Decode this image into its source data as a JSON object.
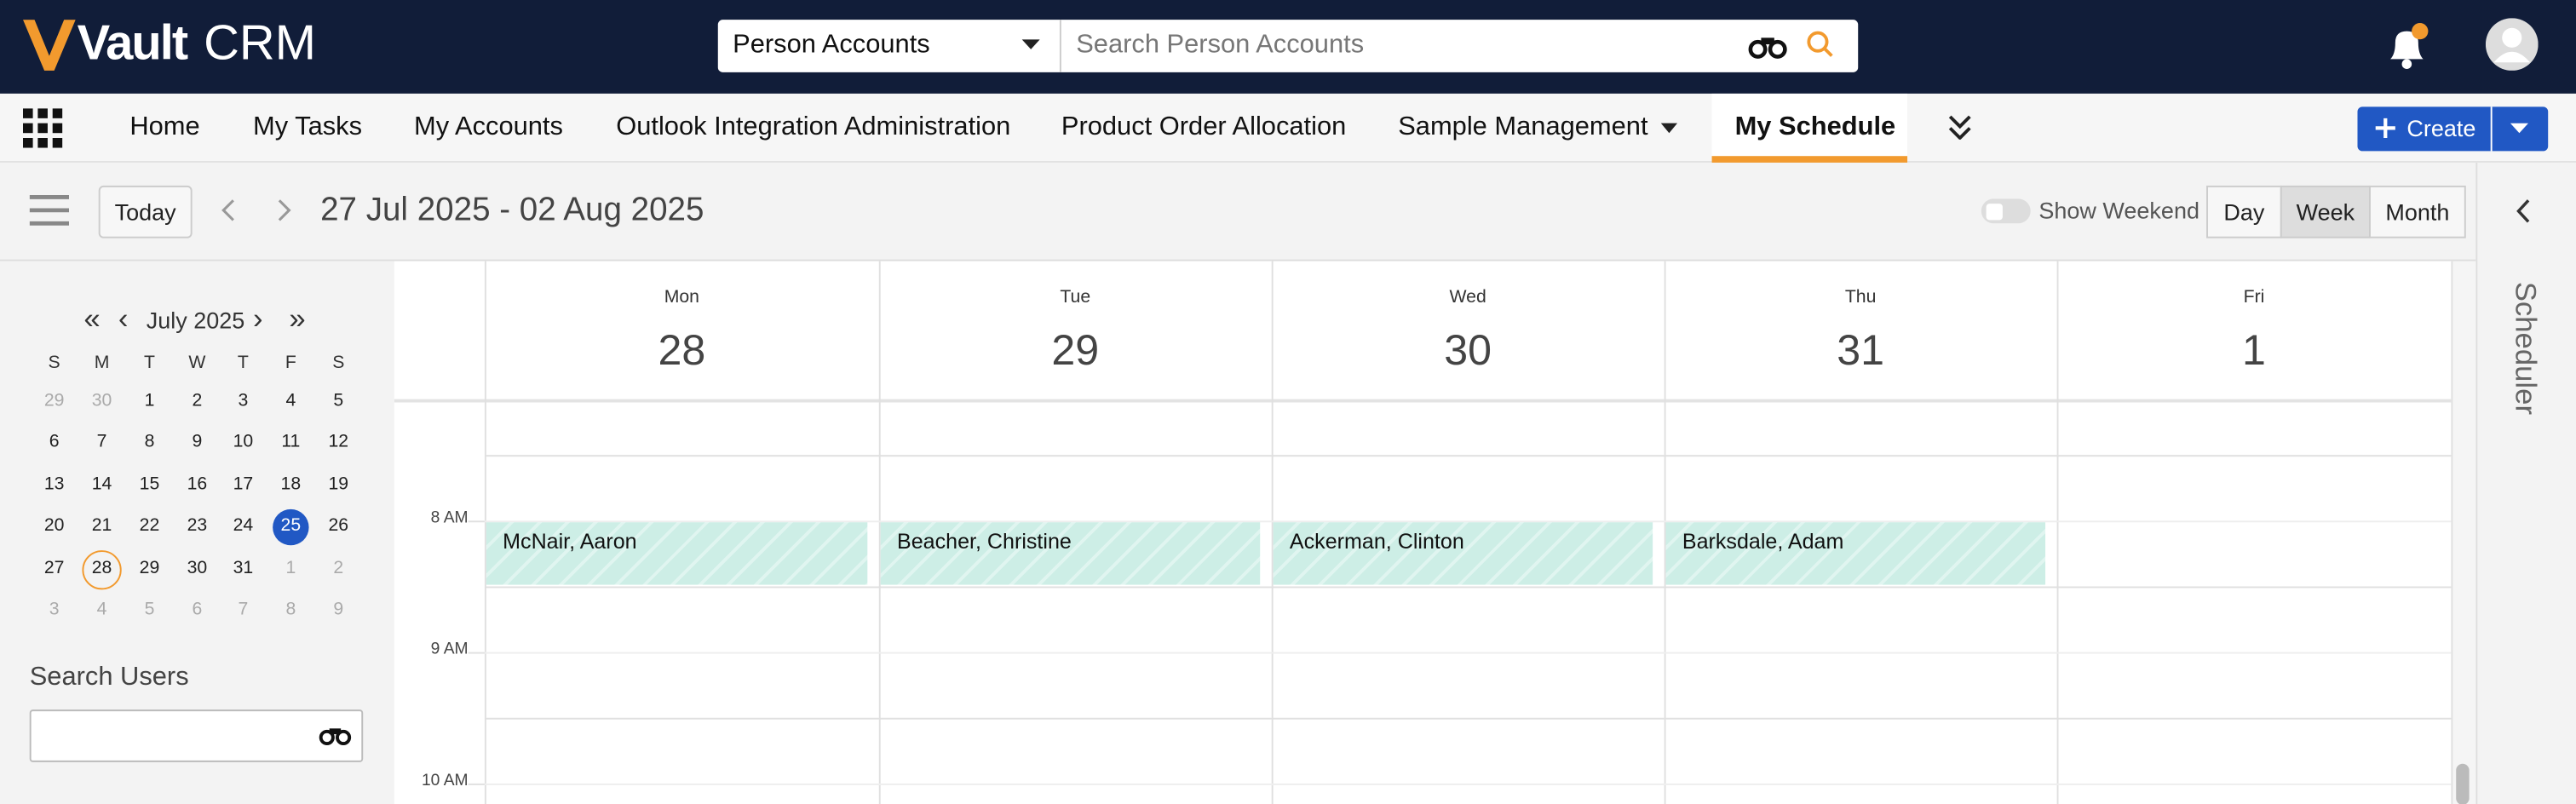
{
  "header": {
    "brand": "Vault",
    "brand_suffix": "CRM",
    "search_scope": "Person Accounts",
    "search_placeholder": "Search Person Accounts"
  },
  "nav": {
    "tabs": [
      "Home",
      "My Tasks",
      "My Accounts",
      "Outlook Integration Administration",
      "Product Order Allocation",
      "Sample Management",
      "My Schedule"
    ],
    "active_tab": "My Schedule",
    "create": "Create"
  },
  "toolbar": {
    "today": "Today",
    "range": "27 Jul 2025 - 02 Aug 2025",
    "show_weekend": "Show Weekend",
    "views": [
      "Day",
      "Week",
      "Month"
    ],
    "active_view": "Week"
  },
  "mini_calendar": {
    "title": "July 2025",
    "weekdays": [
      "S",
      "M",
      "T",
      "W",
      "T",
      "F",
      "S"
    ],
    "weeks": [
      [
        29,
        30,
        1,
        2,
        3,
        4,
        5
      ],
      [
        6,
        7,
        8,
        9,
        10,
        11,
        12
      ],
      [
        13,
        14,
        15,
        16,
        17,
        18,
        19
      ],
      [
        20,
        21,
        22,
        23,
        24,
        25,
        26
      ],
      [
        27,
        28,
        29,
        30,
        31,
        1,
        2
      ],
      [
        3,
        4,
        5,
        6,
        7,
        8,
        9
      ]
    ],
    "selected": 25,
    "today": 28
  },
  "search_users": {
    "label": "Search Users"
  },
  "schedule": {
    "days": [
      {
        "name": "Mon",
        "date": 28
      },
      {
        "name": "Tue",
        "date": 29
      },
      {
        "name": "Wed",
        "date": 30
      },
      {
        "name": "Thu",
        "date": 31
      },
      {
        "name": "Fri",
        "date": 1
      }
    ],
    "times": [
      "8 AM",
      "9 AM",
      "10 AM"
    ],
    "events": [
      {
        "title": "McNair, Aaron",
        "day": 0
      },
      {
        "title": "Beacher, Christine",
        "day": 1
      },
      {
        "title": "Ackerman, Clinton",
        "day": 2
      },
      {
        "title": "Barksdale, Adam",
        "day": 3
      }
    ]
  },
  "side_panel": {
    "title": "Scheduler"
  }
}
